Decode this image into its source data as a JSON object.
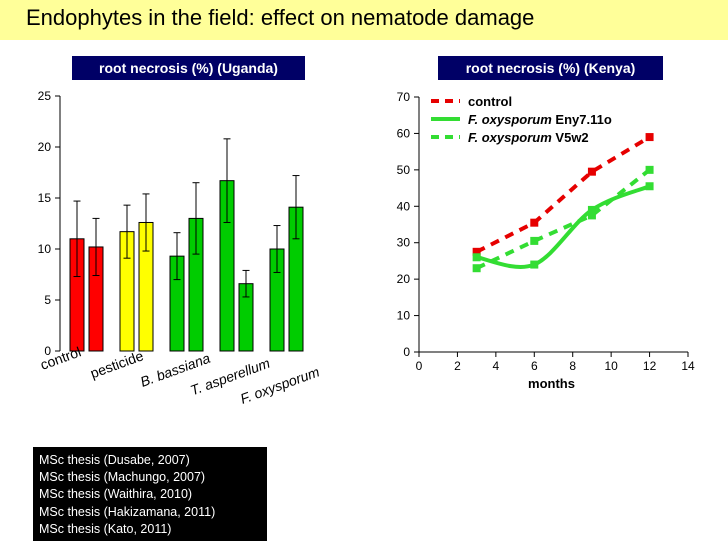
{
  "page_title": "Endophytes in the field: effect on nematode damage",
  "colors": {
    "title_background": "#ffff99",
    "chart_title_background": "#000066",
    "red": "#ff0000",
    "yellow": "#ffff00",
    "green": "#00cc00",
    "line_red": "#e60000",
    "line_green": "#33dd33"
  },
  "references": [
    "MSc thesis (Dusabe, 2007)",
    "MSc thesis (Machungo, 2007)",
    "MSc thesis (Waithira, 2010)",
    "MSc thesis (Hakizamana, 2011)",
    "MSc thesis (Kato, 2011)"
  ],
  "chart_data": [
    {
      "type": "bar",
      "title": "root necrosis (%) (Uganda)",
      "ylim": [
        0,
        25
      ],
      "yticks": [
        0,
        5,
        10,
        15,
        20,
        25
      ],
      "categories": [
        "control",
        "pesticide",
        "B. bassiana",
        "T. asperellum",
        "F. oxysporum"
      ],
      "bars": [
        {
          "category": "control",
          "value": 11.0,
          "error": 3.7,
          "color": "#ff0000"
        },
        {
          "category": "control",
          "value": 10.2,
          "error": 2.8,
          "color": "#ff0000"
        },
        {
          "category": "pesticide",
          "value": 11.7,
          "error": 2.6,
          "color": "#ffff00"
        },
        {
          "category": "pesticide",
          "value": 12.6,
          "error": 2.8,
          "color": "#ffff00"
        },
        {
          "category": "B. bassiana",
          "value": 9.3,
          "error": 2.3,
          "color": "#00cc00"
        },
        {
          "category": "B. bassiana",
          "value": 13.0,
          "error": 3.5,
          "color": "#00cc00"
        },
        {
          "category": "T. asperellum",
          "value": 16.7,
          "error": 4.1,
          "color": "#00cc00"
        },
        {
          "category": "T. asperellum",
          "value": 6.6,
          "error": 1.3,
          "color": "#00cc00"
        },
        {
          "category": "F. oxysporum",
          "value": 10.0,
          "error": 2.3,
          "color": "#00cc00"
        },
        {
          "category": "F. oxysporum",
          "value": 14.1,
          "error": 3.1,
          "color": "#00cc00"
        }
      ]
    },
    {
      "type": "line",
      "title": "root necrosis (%) (Kenya)",
      "xlabel": "months",
      "xlim": [
        0,
        14
      ],
      "ylim": [
        0,
        70
      ],
      "xticks": [
        0,
        2,
        4,
        6,
        8,
        10,
        12,
        14
      ],
      "yticks": [
        0,
        10,
        20,
        30,
        40,
        50,
        60,
        70
      ],
      "series": [
        {
          "name": "control",
          "italic_part": "",
          "x": [
            3,
            6,
            9,
            12
          ],
          "y": [
            27.5,
            35.5,
            49.5,
            59
          ],
          "color": "#e60000",
          "style": "dashed",
          "markers": true
        },
        {
          "name": "Eny7.11o",
          "italic_part": "F. oxysporum",
          "x": [
            3,
            6,
            9,
            12
          ],
          "y": [
            26,
            24,
            39,
            45.5
          ],
          "color": "#33dd33",
          "style": "solid",
          "markers": true
        },
        {
          "name": "V5w2",
          "italic_part": "F. oxysporum",
          "x": [
            3,
            6,
            9,
            12
          ],
          "y": [
            23,
            30.5,
            37.5,
            50
          ],
          "color": "#33dd33",
          "style": "dashed",
          "markers": true
        }
      ]
    }
  ]
}
